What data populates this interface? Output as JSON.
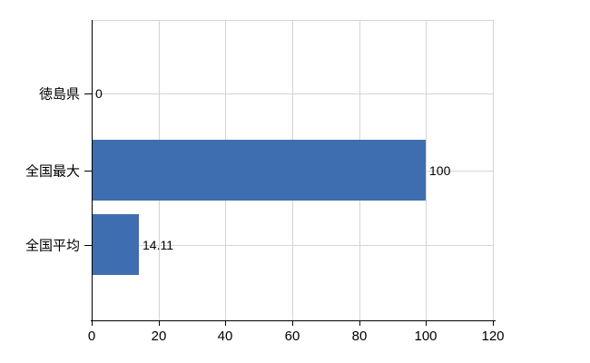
{
  "chart_data": {
    "type": "bar",
    "orientation": "horizontal",
    "title": "",
    "xlabel": "",
    "ylabel": "",
    "categories": [
      "徳島県",
      "全国最大",
      "全国平均"
    ],
    "values": [
      0,
      100,
      14.11
    ],
    "value_labels": [
      "0",
      "100",
      "14.11"
    ],
    "x_ticks": [
      "0",
      "20",
      "40",
      "60",
      "80",
      "100",
      "120"
    ],
    "x_tick_values": [
      0,
      20,
      40,
      60,
      80,
      100,
      120
    ],
    "xlim": [
      0,
      120
    ],
    "grid": true,
    "legend": false,
    "colors": {
      "bar": "#3f6eb0",
      "grid": "#d4d4d4",
      "axis": "#000000",
      "text": "#000000",
      "background": "#ffffff"
    }
  }
}
